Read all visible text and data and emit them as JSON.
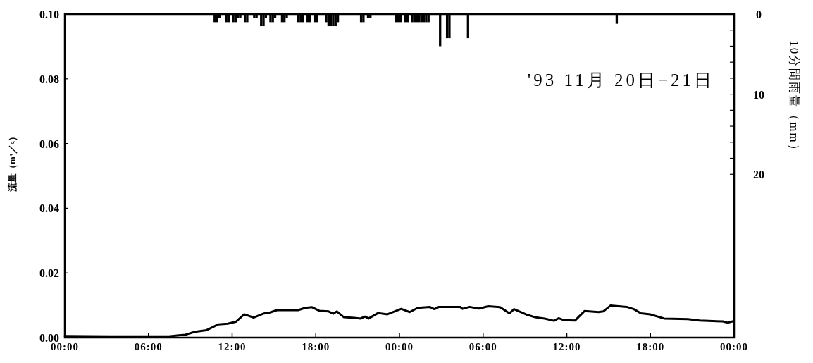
{
  "chart_data": {
    "type": "line",
    "ylabel": "流量（m³／s）",
    "y2label": "10分間雨量（mm）",
    "annotations": [
      "'93 11月 20日−21日"
    ],
    "xlim": [
      "1993-11-20T00:00",
      "1993-11-22T00:00"
    ],
    "xticks": [
      {
        "value": "1993-11-20T00:00",
        "label": "00:00"
      },
      {
        "value": "1993-11-20T06:00",
        "label": "06:00"
      },
      {
        "value": "1993-11-20T12:00",
        "label": "12:00"
      },
      {
        "value": "1993-11-20T18:00",
        "label": "18:00"
      },
      {
        "value": "1993-11-21T00:00",
        "label": "00:00"
      },
      {
        "value": "1993-11-21T06:00",
        "label": "06:00"
      },
      {
        "value": "1993-11-21T12:00",
        "label": "12:00"
      },
      {
        "value": "1993-11-21T18:00",
        "label": "18:00"
      },
      {
        "value": "1993-11-22T00:00",
        "label": "00:00"
      }
    ],
    "ylim": [
      0,
      0.1
    ],
    "yticks": [
      {
        "value": 0,
        "label": "0.00"
      },
      {
        "value": 0.02,
        "label": "0.02"
      },
      {
        "value": 0.04,
        "label": "0.04"
      },
      {
        "value": 0.06,
        "label": "0.06"
      },
      {
        "value": 0.08,
        "label": "0.08"
      },
      {
        "value": 0.1,
        "label": "0.10"
      }
    ],
    "y2lim": [
      40.4,
      0
    ],
    "y2ticks": [
      0,
      {
        "value": 2,
        "label": null
      },
      {
        "value": 4,
        "label": null
      },
      {
        "value": 6,
        "label": null
      },
      {
        "value": 8,
        "label": null
      },
      10,
      {
        "value": 12,
        "label": null
      },
      {
        "value": 14,
        "label": null
      },
      {
        "value": 16,
        "label": null
      },
      {
        "value": 18,
        "label": null
      },
      20
    ],
    "series": [
      {
        "color": "#000000",
        "x": [
          "1993-11-20T00:00",
          "1993-11-20T03:16",
          "1993-11-20T07:28",
          "1993-11-20T08:39",
          "1993-11-20T09:20",
          "1993-11-20T10:10",
          "1993-11-20T11:01",
          "1993-11-20T11:41",
          "1993-11-20T12:16",
          "1993-11-20T12:52",
          "1993-11-20T13:32",
          "1993-11-20T14:13",
          "1993-11-20T14:43",
          "1993-11-20T15:13",
          "1993-11-20T16:44",
          "1993-11-20T17:14",
          "1993-11-20T17:44",
          "1993-11-20T18:15",
          "1993-11-20T18:55",
          "1993-11-20T19:16",
          "1993-11-20T19:31",
          "1993-11-20T20:01",
          "1993-11-20T20:46",
          "1993-11-20T21:12",
          "1993-11-20T21:32",
          "1993-11-20T21:47",
          "1993-11-20T22:28",
          "1993-11-20T23:08",
          "1993-11-21T00:08",
          "1993-11-21T00:19",
          "1993-11-21T00:44",
          "1993-11-21T01:19",
          "1993-11-21T02:10",
          "1993-11-21T02:30",
          "1993-11-21T02:50",
          "1993-11-21T04:21",
          "1993-11-21T04:31",
          "1993-11-21T05:02",
          "1993-11-21T05:42",
          "1993-11-21T06:22",
          "1993-11-21T07:13",
          "1993-11-21T07:53",
          "1993-11-21T08:13",
          "1993-11-21T09:04",
          "1993-11-21T09:44",
          "1993-11-21T10:25",
          "1993-11-21T11:05",
          "1993-11-21T11:25",
          "1993-11-21T11:46",
          "1993-11-21T12:36",
          "1993-11-21T13:16",
          "1993-11-21T14:17",
          "1993-11-21T14:37",
          "1993-11-21T15:08",
          "1993-11-21T16:18",
          "1993-11-21T16:49",
          "1993-11-21T17:19",
          "1993-11-21T17:59",
          "1993-11-21T18:59",
          "1993-11-21T20:41",
          "1993-11-21T21:31",
          "1993-11-21T23:12",
          "1993-11-21T23:32",
          "1993-11-21T23:53"
        ],
        "values": [
          0.0005,
          0.0004,
          0.0004,
          0.0009,
          0.0018,
          0.0023,
          0.0041,
          0.0043,
          0.0049,
          0.0072,
          0.0062,
          0.0074,
          0.0078,
          0.0085,
          0.0085,
          0.0092,
          0.0094,
          0.0083,
          0.0081,
          0.0074,
          0.0081,
          0.0063,
          0.0061,
          0.0059,
          0.0065,
          0.0059,
          0.0076,
          0.0072,
          0.0089,
          0.0086,
          0.0079,
          0.0092,
          0.0095,
          0.0088,
          0.0095,
          0.0095,
          0.0089,
          0.0095,
          0.009,
          0.0097,
          0.0094,
          0.0075,
          0.0088,
          0.0072,
          0.0063,
          0.0059,
          0.0052,
          0.006,
          0.0054,
          0.0053,
          0.0082,
          0.0079,
          0.0081,
          0.0099,
          0.0095,
          0.0088,
          0.0075,
          0.0072,
          0.0059,
          0.0057,
          0.0053,
          0.005,
          0.0046,
          0.005
        ]
      },
      {
        "type": "bar",
        "axis": "y2",
        "color": "#000000",
        "x": [
          "1993-11-20T10:45",
          "1993-11-20T10:55",
          "1993-11-20T11:05",
          "1993-11-20T11:35",
          "1993-11-20T11:45",
          "1993-11-20T12:05",
          "1993-11-20T12:15",
          "1993-11-20T12:25",
          "1993-11-20T12:35",
          "1993-11-20T12:55",
          "1993-11-20T13:05",
          "1993-11-20T13:35",
          "1993-11-20T13:45",
          "1993-11-20T14:05",
          "1993-11-20T14:15",
          "1993-11-20T14:25",
          "1993-11-20T14:45",
          "1993-11-20T14:55",
          "1993-11-20T15:05",
          "1993-11-20T15:35",
          "1993-11-20T15:45",
          "1993-11-20T15:55",
          "1993-11-20T16:45",
          "1993-11-20T16:55",
          "1993-11-20T17:05",
          "1993-11-20T17:25",
          "1993-11-20T17:35",
          "1993-11-20T17:55",
          "1993-11-20T18:05",
          "1993-11-20T18:45",
          "1993-11-20T18:55",
          "1993-11-20T19:05",
          "1993-11-20T19:15",
          "1993-11-20T19:25",
          "1993-11-20T19:35",
          "1993-11-20T21:15",
          "1993-11-20T21:25",
          "1993-11-20T21:45",
          "1993-11-20T21:55",
          "1993-11-20T23:45",
          "1993-11-20T23:55",
          "1993-11-21T00:05",
          "1993-11-21T00:25",
          "1993-11-21T00:35",
          "1993-11-21T00:55",
          "1993-11-21T01:05",
          "1993-11-21T01:15",
          "1993-11-21T01:25",
          "1993-11-21T01:35",
          "1993-11-21T01:45",
          "1993-11-21T01:55",
          "1993-11-21T02:05",
          "1993-11-21T02:55",
          "1993-11-21T03:25",
          "1993-11-21T03:35",
          "1993-11-21T04:55",
          "1993-11-21T15:35"
        ],
        "values": [
          1,
          1,
          0.5,
          1,
          1,
          1,
          1,
          0.5,
          0.5,
          1,
          1,
          0.5,
          0.5,
          1.5,
          1.5,
          0.5,
          1,
          1,
          0.5,
          1,
          1,
          0.5,
          1,
          1,
          1,
          1,
          1,
          1,
          1,
          1,
          1.5,
          1.5,
          1.5,
          1.5,
          1,
          1,
          1,
          0.5,
          0.5,
          1,
          1,
          1,
          1,
          1,
          1,
          1,
          1,
          1,
          1,
          1,
          1,
          1,
          4,
          3,
          3,
          3,
          1.2
        ]
      }
    ]
  }
}
